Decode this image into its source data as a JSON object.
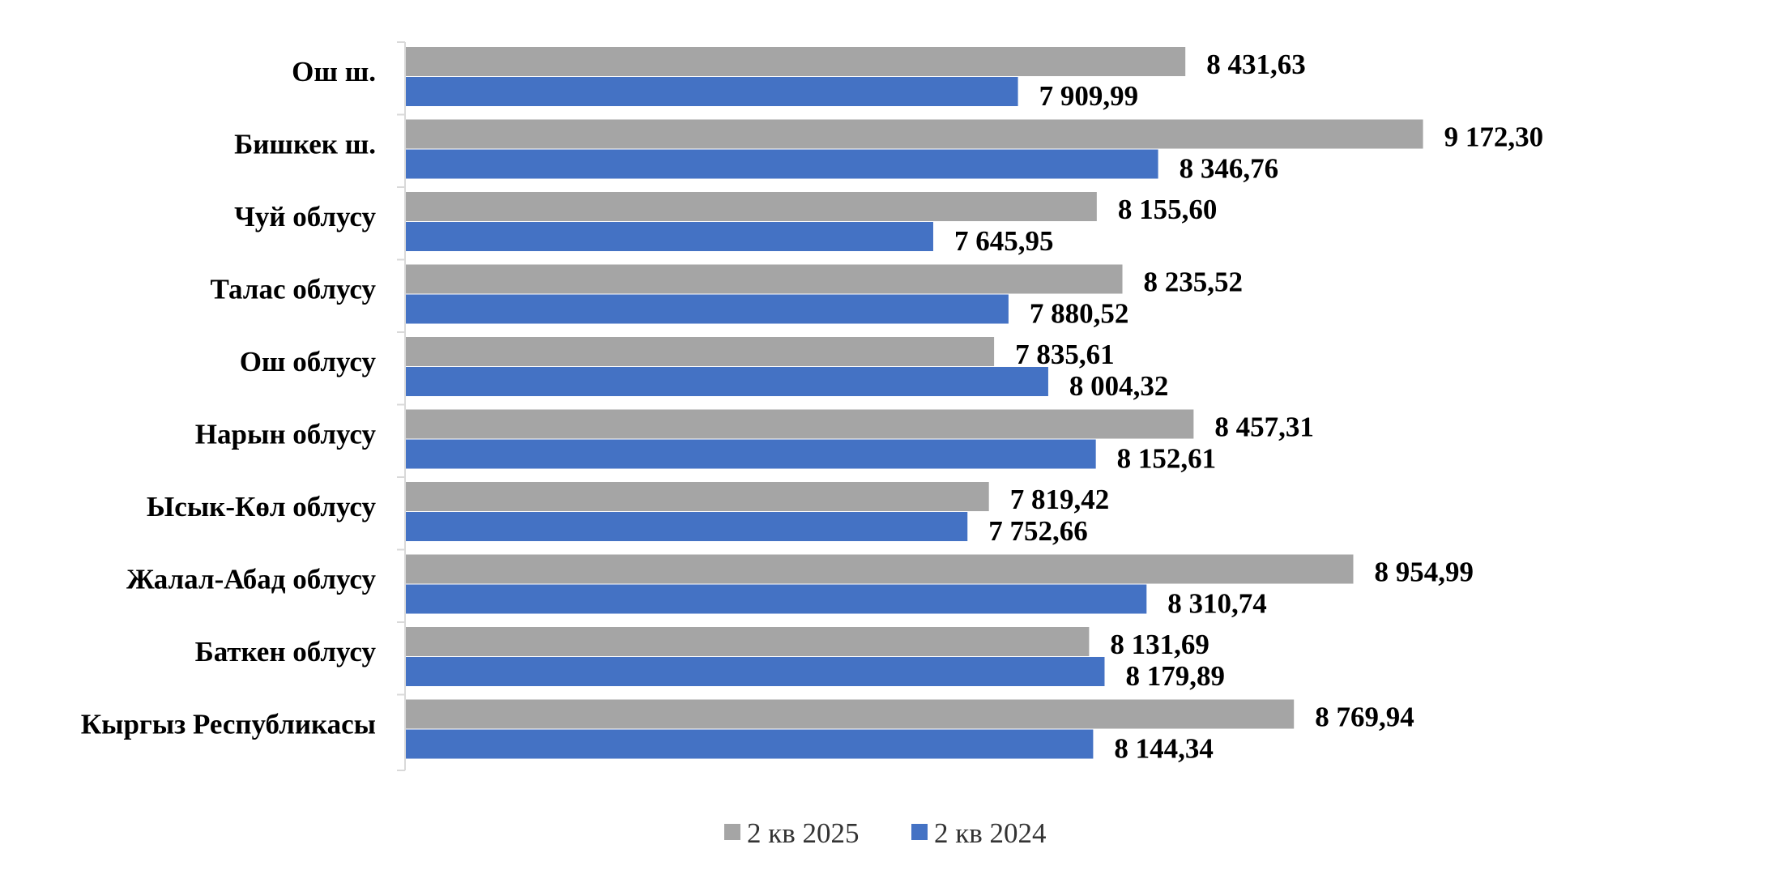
{
  "chart_data": {
    "type": "bar",
    "orientation": "horizontal",
    "title": "",
    "xlabel": "",
    "ylabel": "",
    "categories": [
      "Ош ш.",
      "Бишкек ш.",
      "Чуй облусу",
      "Талас облусу",
      "Ош облусу",
      "Нарын облусу",
      "Ысык-Көл облусу",
      "Жалал-Абад облусу",
      "Баткен облусу",
      "Кыргыз Республикасы"
    ],
    "series": [
      {
        "name": "2 кв 2025",
        "color": "#A5A5A5",
        "values": [
          8431.63,
          9172.3,
          8155.6,
          8235.52,
          7835.61,
          8457.31,
          7819.42,
          8954.99,
          8131.69,
          8769.94
        ],
        "labels": [
          "8 431,63",
          "9 172,30",
          "8 155,60",
          "8 235,52",
          "7 835,61",
          "8 457,31",
          "7 819,42",
          "8 954,99",
          "8 131,69",
          "8 769,94"
        ]
      },
      {
        "name": "2 кв 2024",
        "color": "#4472C4",
        "values": [
          7909.99,
          8346.76,
          7645.95,
          7880.52,
          8004.32,
          8152.61,
          7752.66,
          8310.74,
          8179.89,
          8144.34
        ],
        "labels": [
          "7 909,99",
          "8 346,76",
          "7 645,95",
          "7 880,52",
          "8 004,32",
          "8 152,61",
          "7 752,66",
          "8 310,74",
          "8 179,89",
          "8 144,34"
        ]
      }
    ],
    "xlim": [
      6000,
      9600
    ],
    "grid": false,
    "legend_position": "bottom-center"
  }
}
